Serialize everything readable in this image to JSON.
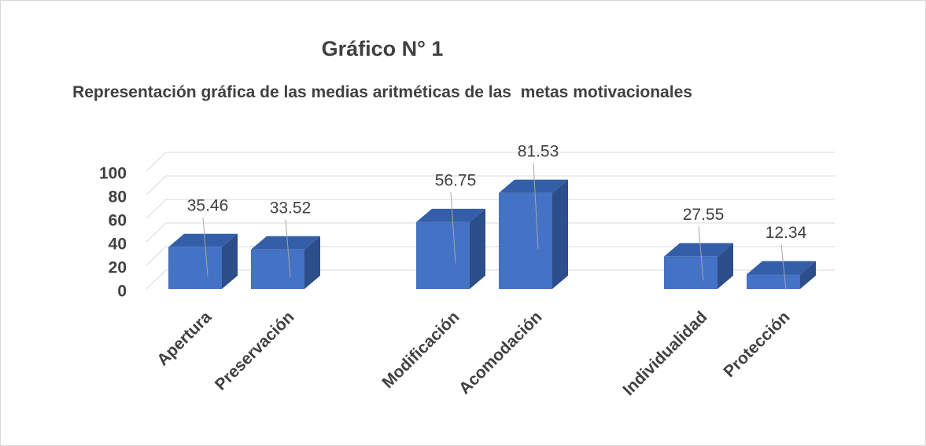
{
  "chart_data": {
    "type": "bar3d",
    "title": "Gráfico N° 1",
    "subtitle": "Representación gráfica de las medias aritméticas de las  metas motivacionales",
    "categories": [
      "Apertura",
      "Preservación",
      null,
      "Modificación",
      "Acomodación",
      null,
      "Individualidad",
      "Protección"
    ],
    "values": [
      35.46,
      33.52,
      null,
      56.75,
      81.53,
      null,
      27.55,
      12.34
    ],
    "color": "#4472c4",
    "ylim": [
      0,
      100
    ],
    "yticks": [
      0,
      20,
      40,
      60,
      80,
      100
    ],
    "grid": true
  }
}
